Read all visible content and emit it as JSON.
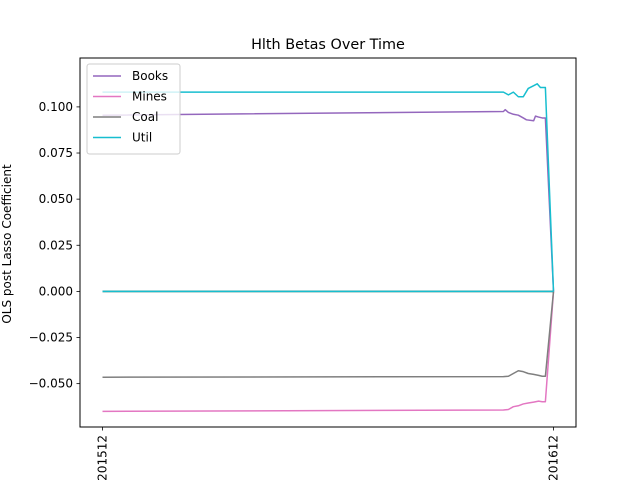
{
  "chart_data": {
    "type": "line",
    "title": "Hlth  Betas Over Time",
    "xlabel": "",
    "ylabel": "OLS post Lasso Coefficient",
    "x_ticks": [
      "201512",
      "201612"
    ],
    "x_range": [
      0,
      1
    ],
    "ylim": [
      -0.0735,
      0.1265
    ],
    "y_ticks": [
      -0.05,
      -0.025,
      0.0,
      0.025,
      0.05,
      0.075,
      0.1
    ],
    "y_tick_labels": [
      "−0.050",
      "−0.025",
      "0.000",
      "0.025",
      "0.050",
      "0.075",
      "0.100"
    ],
    "grid": false,
    "legend_position": "top-left",
    "series": [
      {
        "name": "Books",
        "color": "#9467bd",
        "x": [
          0,
          0.889,
          0.893,
          0.9,
          0.911,
          0.922,
          0.933,
          0.94,
          0.956,
          0.96,
          0.967,
          0.975,
          0.982,
          1.0
        ],
        "y": [
          0.0955,
          0.0975,
          0.0985,
          0.097,
          0.096,
          0.0955,
          0.094,
          0.093,
          0.0925,
          0.095,
          0.0945,
          0.094,
          0.094,
          0.0
        ]
      },
      {
        "name": "Mines",
        "color": "#e377c2",
        "x": [
          0,
          0.889,
          0.9,
          0.911,
          0.922,
          0.933,
          0.944,
          0.956,
          0.967,
          0.975,
          0.982,
          1.0
        ],
        "y": [
          -0.065,
          -0.0643,
          -0.064,
          -0.0625,
          -0.062,
          -0.061,
          -0.0605,
          -0.06,
          -0.0595,
          -0.0598,
          -0.0598,
          0.0
        ]
      },
      {
        "name": "Coal",
        "color": "#7f7f7f",
        "x": [
          0,
          0.889,
          0.9,
          0.911,
          0.922,
          0.933,
          0.944,
          0.956,
          0.967,
          0.975,
          0.982,
          1.0
        ],
        "y": [
          -0.0465,
          -0.0462,
          -0.046,
          -0.0445,
          -0.043,
          -0.0435,
          -0.0445,
          -0.045,
          -0.0455,
          -0.046,
          -0.046,
          0.0
        ]
      },
      {
        "name": "Util",
        "color": "#17becf",
        "x": [
          0,
          0.889,
          0.9,
          0.911,
          0.922,
          0.933,
          0.944,
          0.956,
          0.964,
          0.971,
          0.976,
          0.982,
          1.0
        ],
        "y": [
          0.108,
          0.108,
          0.1065,
          0.108,
          0.1055,
          0.1055,
          0.11,
          0.1115,
          0.1125,
          0.1105,
          0.1105,
          0.1105,
          0.0
        ]
      },
      {
        "name": "",
        "color": "#1f77b4",
        "x": [
          0,
          1.0
        ],
        "y": [
          0.0,
          0.0
        ]
      },
      {
        "name": "",
        "color": "#2ca02c",
        "x": [
          0,
          1.0
        ],
        "y": [
          0.0,
          0.0
        ]
      },
      {
        "name": "",
        "color": "#8c564b",
        "x": [
          0,
          1.0
        ],
        "y": [
          0.0,
          0.0
        ]
      },
      {
        "name": "",
        "color": "#17becf",
        "x": [
          0,
          1.0
        ],
        "y": [
          0.0,
          0.0
        ]
      }
    ]
  }
}
